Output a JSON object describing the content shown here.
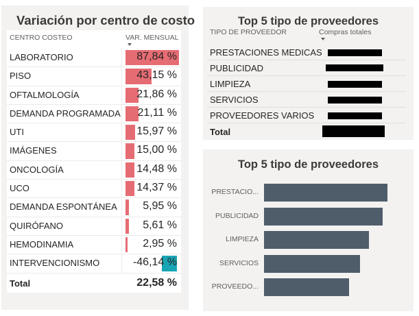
{
  "left_panel": {
    "title": "Variación por centro de costo",
    "col_label": "CENTRO COSTEO",
    "col_value": "VAR. MENSUAL",
    "rows": [
      {
        "label": "LABORATORIO",
        "value": 87.84,
        "display": "87,84 %"
      },
      {
        "label": "PISO",
        "value": 43.15,
        "display": "43,15 %"
      },
      {
        "label": "OFTALMOLOGÍA",
        "value": 21.86,
        "display": "21,86 %"
      },
      {
        "label": "DEMANDA PROGRAMADA",
        "value": 21.11,
        "display": "21,11 %"
      },
      {
        "label": "UTI",
        "value": 15.97,
        "display": "15,97 %"
      },
      {
        "label": "IMÁGENES",
        "value": 15.0,
        "display": "15,00 %"
      },
      {
        "label": "ONCOLOGÍA",
        "value": 14.48,
        "display": "14,48 %"
      },
      {
        "label": "UCO",
        "value": 14.37,
        "display": "14,37 %"
      },
      {
        "label": "DEMANDA ESPONTÁNEA",
        "value": 5.95,
        "display": "5,95 %"
      },
      {
        "label": "QUIRÓFANO",
        "value": 5.61,
        "display": "5,61 %"
      },
      {
        "label": "HEMODINAMIA",
        "value": 2.95,
        "display": "2,95 %"
      },
      {
        "label": "INTERVENCIONISMO",
        "value": -46.14,
        "display": "-46,14 %"
      }
    ],
    "total_label": "Total",
    "total_value": "22,58 %",
    "positive_color": "#e66c74",
    "negative_color": "#18a5b5"
  },
  "table_panel": {
    "title": "Top 5 tipo de proveedores",
    "col_label": "TIPO DE PROVEEDOR",
    "col_value": "Compras totales",
    "rows": [
      {
        "label": "PRESTACIONES MEDICAS"
      },
      {
        "label": "PUBLICIDAD"
      },
      {
        "label": "LIMPIEZA"
      },
      {
        "label": "SERVICIOS"
      },
      {
        "label": "PROVEEDORES VARIOS"
      }
    ],
    "total_label": "Total"
  },
  "chart_panel": {
    "title": "Top 5 tipo de proveedores",
    "bar_color": "#4f5d6b"
  },
  "chart_data": {
    "type": "bar",
    "orientation": "horizontal",
    "categories": [
      "PRESTACIO...",
      "PUBLICIDAD",
      "LIMPIEZA",
      "SERVICIOS",
      "PROVEEDO..."
    ],
    "values": [
      100,
      96,
      85,
      78,
      69
    ],
    "xlabel": "",
    "ylabel": "",
    "grid": false
  }
}
